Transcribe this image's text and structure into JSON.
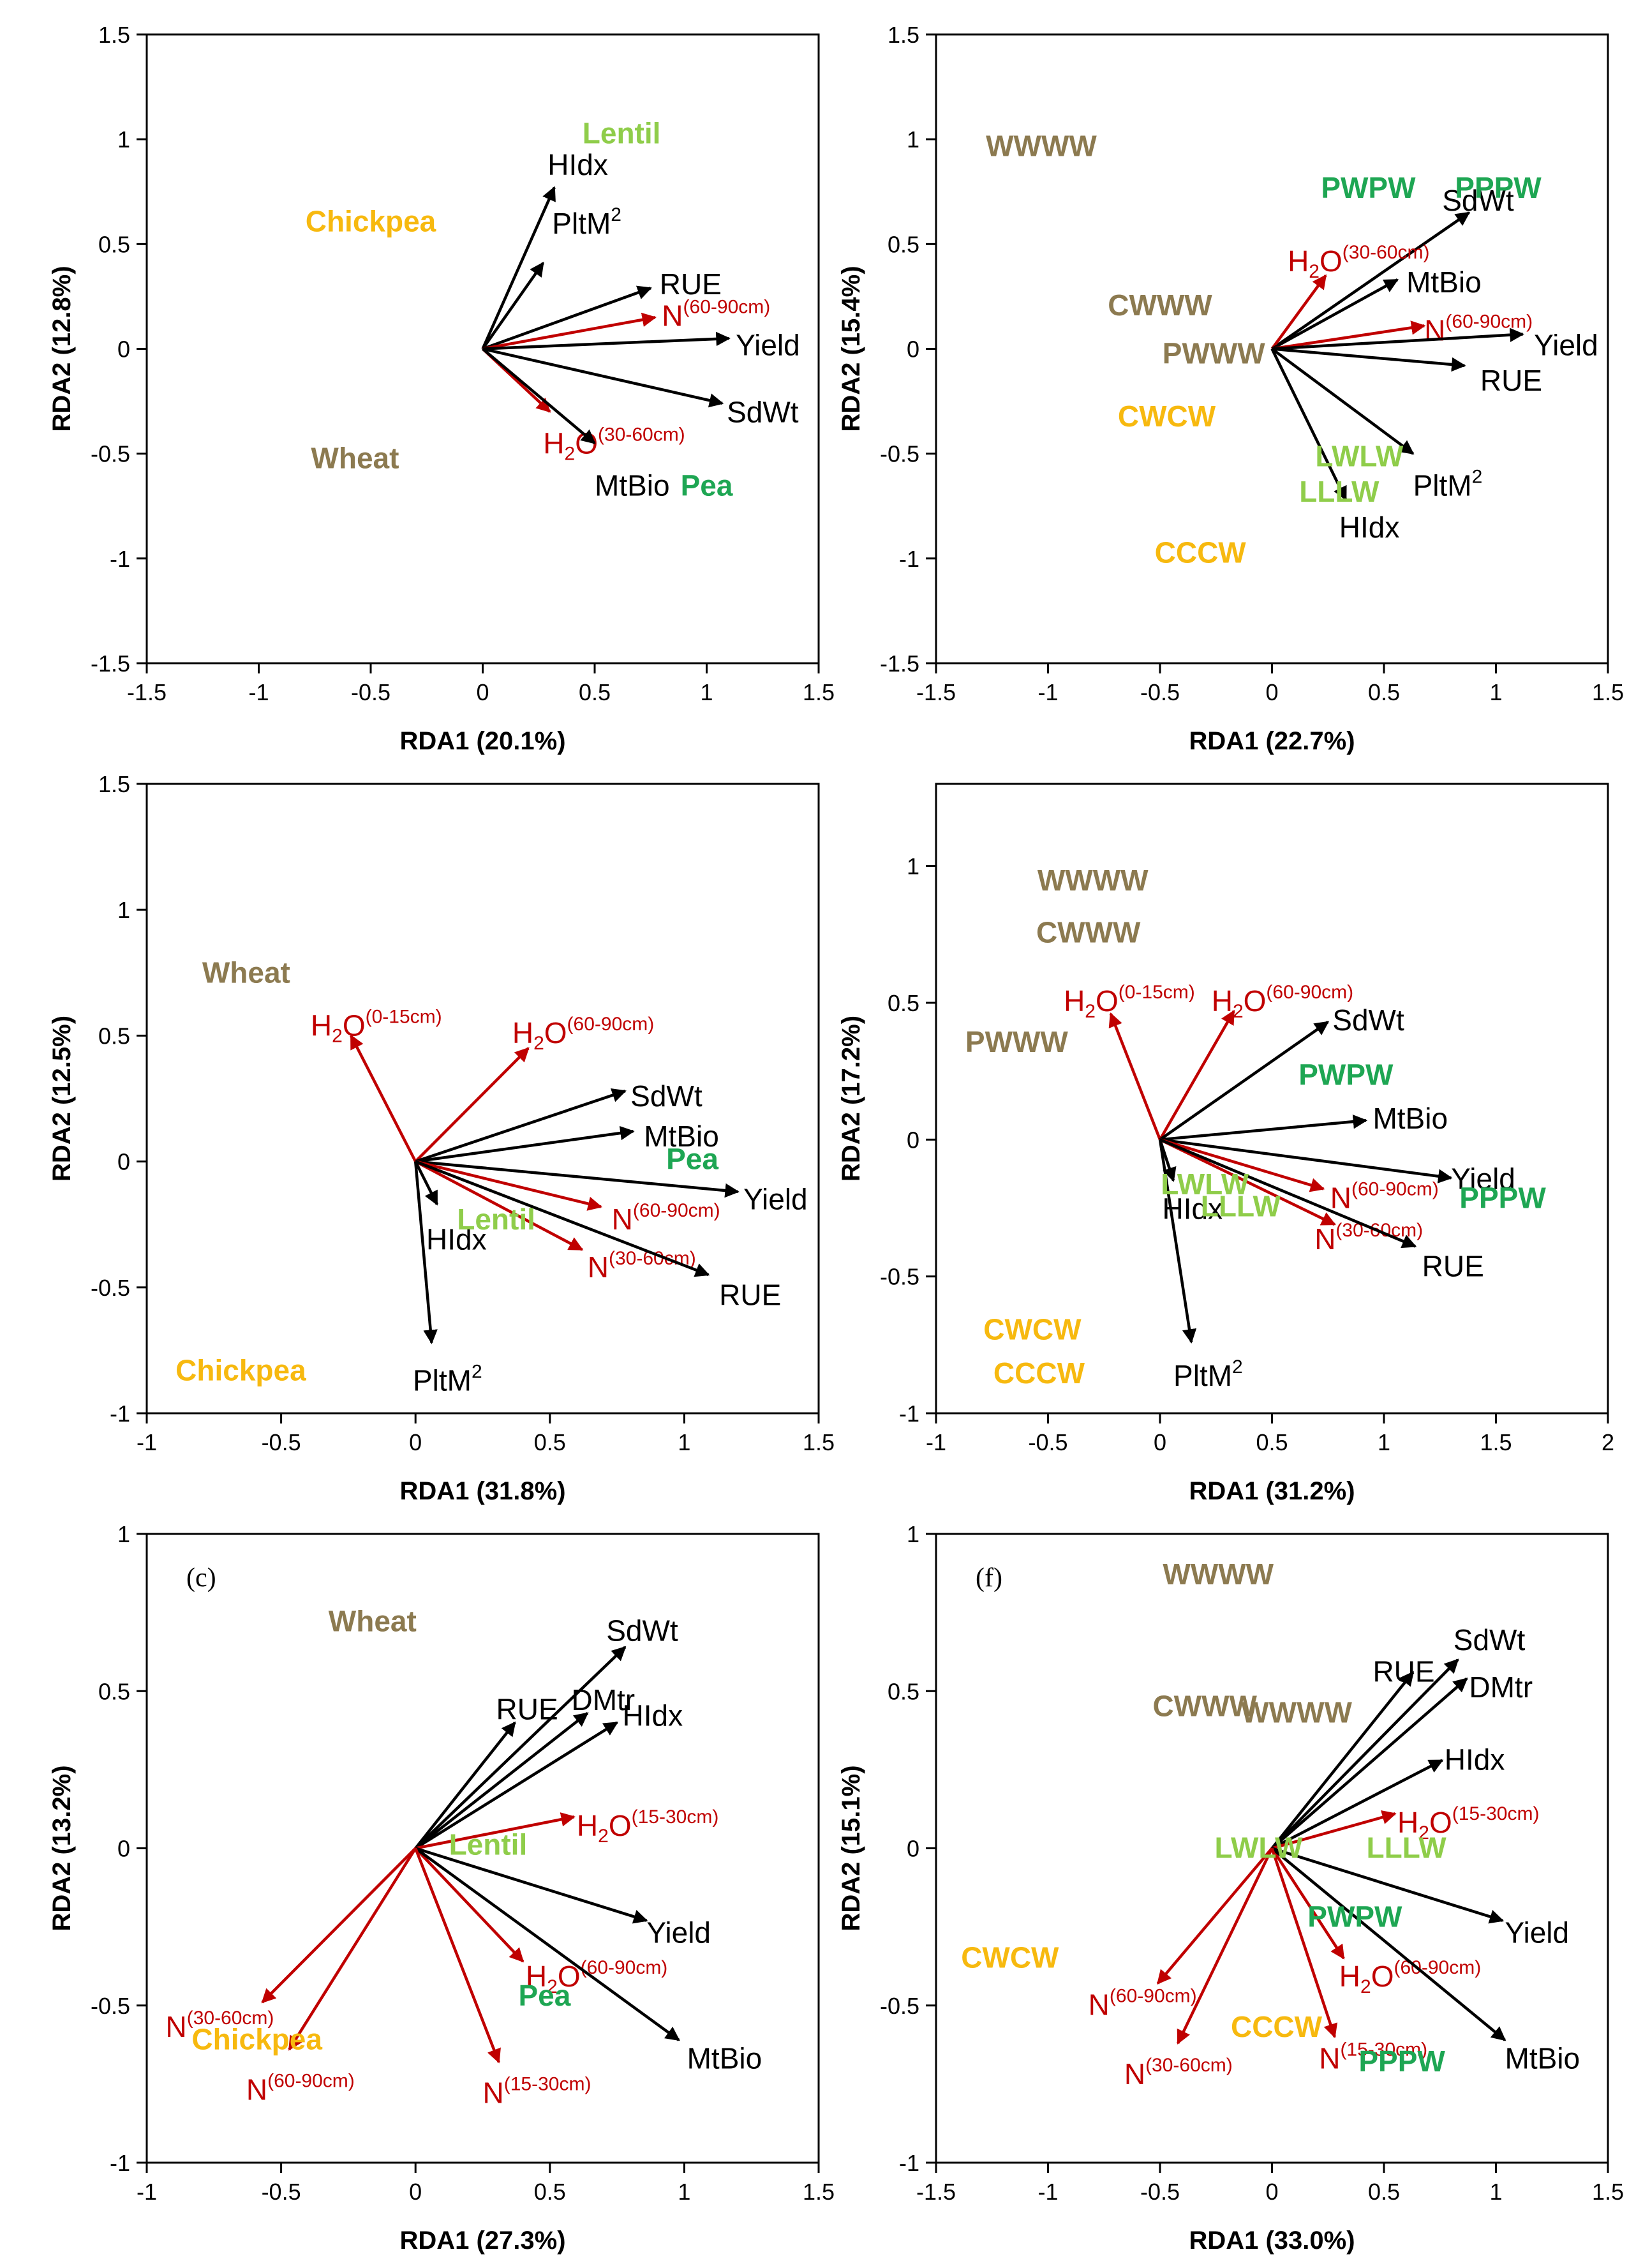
{
  "colors": {
    "response_arrow": "#000000",
    "soil_arrow": "#c00000",
    "wheat": "#8c7a50",
    "chickpea": "#f7b90f",
    "lentil": "#8fcd4a",
    "pea": "#1ea653"
  },
  "chart_data": [
    {
      "type": "scatter",
      "subtype": "rda-biplot",
      "xlabel": "RDA1 (20.1%)",
      "ylabel": "RDA2 (12.8%)",
      "xlim": [
        -1.5,
        1.5
      ],
      "ylim": [
        -1.5,
        1.5
      ],
      "xticks": [
        "-1.5",
        "-1",
        "-0.5",
        "0",
        "0.5",
        "1",
        "1.5"
      ],
      "yticks": [
        "-1.5",
        "-1",
        "-0.5",
        "0",
        "0.5",
        "1",
        "1.5"
      ],
      "panel_label": "",
      "arrows": [
        {
          "label": "HIdx",
          "sup": "",
          "x": 0.32,
          "y": 0.77,
          "color": "response_arrow",
          "lx": 0.29,
          "ly": 0.83
        },
        {
          "label": "PltM",
          "sup": "2",
          "x": 0.27,
          "y": 0.41,
          "color": "response_arrow",
          "lx": 0.31,
          "ly": 0.55
        },
        {
          "label": "RUE",
          "sup": "",
          "x": 0.75,
          "y": 0.29,
          "color": "response_arrow",
          "lx": 0.79,
          "ly": 0.26
        },
        {
          "label": "N",
          "sup": "(60-90cm)",
          "x": 0.77,
          "y": 0.15,
          "color": "soil_arrow",
          "lx": 0.8,
          "ly": 0.11
        },
        {
          "label": "Yield",
          "sup": "",
          "x": 1.1,
          "y": 0.05,
          "color": "response_arrow",
          "lx": 1.13,
          "ly": -0.03
        },
        {
          "label": "SdWt",
          "sup": "",
          "x": 1.07,
          "y": -0.26,
          "color": "response_arrow",
          "lx": 1.09,
          "ly": -0.35
        },
        {
          "label": "H",
          "sub": "2",
          "label2": "O",
          "sup": "(30-60cm)",
          "x": 0.3,
          "y": -0.3,
          "color": "soil_arrow",
          "lx": 0.27,
          "ly": -0.5
        },
        {
          "label": "MtBio",
          "sup": "",
          "x": 0.5,
          "y": -0.45,
          "color": "response_arrow",
          "lx": 0.5,
          "ly": -0.7
        }
      ],
      "treatments": [
        {
          "label": "Lentil",
          "x": 0.62,
          "y": 0.98,
          "color": "lentil"
        },
        {
          "label": "Chickpea",
          "x": -0.5,
          "y": 0.56,
          "color": "chickpea"
        },
        {
          "label": "Wheat",
          "x": -0.57,
          "y": -0.57,
          "color": "wheat"
        },
        {
          "label": "Pea",
          "x": 1.0,
          "y": -0.7,
          "color": "pea"
        }
      ]
    },
    {
      "type": "scatter",
      "subtype": "rda-biplot",
      "xlabel": "RDA1 (22.7%)",
      "ylabel": "RDA2 (15.4%)",
      "xlim": [
        -1.5,
        1.5
      ],
      "ylim": [
        -1.5,
        1.5
      ],
      "xticks": [
        "-1.5",
        "-1",
        "-0.5",
        "0",
        "0.5",
        "1",
        "1.5"
      ],
      "yticks": [
        "-1.5",
        "-1",
        "-0.5",
        "0",
        "0.5",
        "1",
        "1.5"
      ],
      "panel_label": "",
      "arrows": [
        {
          "label": "SdWt",
          "sup": "",
          "x": 0.88,
          "y": 0.65,
          "color": "response_arrow",
          "lx": 0.76,
          "ly": 0.66
        },
        {
          "label": "H",
          "sub": "2",
          "label2": "O",
          "sup": "(30-60cm)",
          "x": 0.24,
          "y": 0.35,
          "color": "soil_arrow",
          "lx": 0.07,
          "ly": 0.37
        },
        {
          "label": "MtBio",
          "sup": "",
          "x": 0.56,
          "y": 0.33,
          "color": "response_arrow",
          "lx": 0.6,
          "ly": 0.27
        },
        {
          "label": "N",
          "sup": "(60-90cm)",
          "x": 0.68,
          "y": 0.11,
          "color": "soil_arrow",
          "lx": 0.68,
          "ly": 0.04
        },
        {
          "label": "Yield",
          "sup": "",
          "x": 1.12,
          "y": 0.07,
          "color": "response_arrow",
          "lx": 1.17,
          "ly": -0.03
        },
        {
          "label": "RUE",
          "sup": "",
          "x": 0.86,
          "y": -0.08,
          "color": "response_arrow",
          "lx": 0.93,
          "ly": -0.2
        },
        {
          "label": "PltM",
          "sup": "2",
          "x": 0.63,
          "y": -0.5,
          "color": "response_arrow",
          "lx": 0.63,
          "ly": -0.7
        },
        {
          "label": "HIdx",
          "sup": "",
          "x": 0.33,
          "y": -0.72,
          "color": "response_arrow",
          "lx": 0.3,
          "ly": -0.9
        }
      ],
      "treatments": [
        {
          "label": "WWWW",
          "x": -1.03,
          "y": 0.92,
          "color": "wheat"
        },
        {
          "label": "PWPW",
          "x": 0.43,
          "y": 0.72,
          "color": "pea"
        },
        {
          "label": "PPPW",
          "x": 1.01,
          "y": 0.72,
          "color": "pea"
        },
        {
          "label": "CWWW",
          "x": -0.5,
          "y": 0.16,
          "color": "wheat"
        },
        {
          "label": "PWWW",
          "x": -0.26,
          "y": -0.07,
          "color": "wheat"
        },
        {
          "label": "CWCW",
          "x": -0.47,
          "y": -0.37,
          "color": "chickpea"
        },
        {
          "label": "LWLW",
          "x": 0.39,
          "y": -0.56,
          "color": "lentil"
        },
        {
          "label": "LLLW",
          "x": 0.3,
          "y": -0.73,
          "color": "lentil"
        },
        {
          "label": "CCCW",
          "x": -0.32,
          "y": -1.02,
          "color": "chickpea"
        }
      ]
    },
    {
      "type": "scatter",
      "subtype": "rda-biplot",
      "xlabel": "RDA1 (31.8%)",
      "ylabel": "RDA2 (12.5%)",
      "xlim": [
        -1,
        1.5
      ],
      "ylim": [
        -1,
        1.5
      ],
      "xticks": [
        "-1",
        "-0.5",
        "0",
        "0.5",
        "1",
        "1.5"
      ],
      "yticks": [
        "-1",
        "-0.5",
        "0",
        "0.5",
        "1",
        "1.5"
      ],
      "panel_label": "",
      "arrows": [
        {
          "label": "H",
          "sub": "2",
          "label2": "O",
          "sup": "(0-15cm)",
          "x": -0.24,
          "y": 0.5,
          "color": "soil_arrow",
          "lx": -0.39,
          "ly": 0.5
        },
        {
          "label": "H",
          "sub": "2",
          "label2": "O",
          "sup": "(60-90cm)",
          "x": 0.42,
          "y": 0.45,
          "color": "soil_arrow",
          "lx": 0.36,
          "ly": 0.47
        },
        {
          "label": "SdWt",
          "sup": "",
          "x": 0.78,
          "y": 0.28,
          "color": "response_arrow",
          "lx": 0.8,
          "ly": 0.22
        },
        {
          "label": "MtBio",
          "sup": "",
          "x": 0.81,
          "y": 0.12,
          "color": "response_arrow",
          "lx": 0.85,
          "ly": 0.06
        },
        {
          "label": "Yield",
          "sup": "",
          "x": 1.2,
          "y": -0.12,
          "color": "response_arrow",
          "lx": 1.22,
          "ly": -0.19
        },
        {
          "label": "N",
          "sup": "(60-90cm)",
          "x": 0.69,
          "y": -0.18,
          "color": "soil_arrow",
          "lx": 0.73,
          "ly": -0.27
        },
        {
          "label": "N",
          "sup": "(30-60cm)",
          "x": 0.62,
          "y": -0.35,
          "color": "soil_arrow",
          "lx": 0.64,
          "ly": -0.46
        },
        {
          "label": "RUE",
          "sup": "",
          "x": 1.09,
          "y": -0.45,
          "color": "response_arrow",
          "lx": 1.13,
          "ly": -0.57
        },
        {
          "label": "HIdx",
          "sup": "",
          "x": 0.08,
          "y": -0.17,
          "color": "response_arrow",
          "lx": 0.04,
          "ly": -0.35
        },
        {
          "label": "PltM",
          "sup": "2",
          "x": 0.06,
          "y": -0.72,
          "color": "response_arrow",
          "lx": -0.01,
          "ly": -0.91
        }
      ],
      "treatments": [
        {
          "label": "Wheat",
          "x": -0.63,
          "y": 0.71,
          "color": "wheat"
        },
        {
          "label": "Pea",
          "x": 1.03,
          "y": -0.03,
          "color": "pea"
        },
        {
          "label": "Lentil",
          "x": 0.3,
          "y": -0.27,
          "color": "lentil"
        },
        {
          "label": "Chickpea",
          "x": -0.65,
          "y": -0.87,
          "color": "chickpea"
        }
      ]
    },
    {
      "type": "scatter",
      "subtype": "rda-biplot",
      "xlabel": "RDA1 (31.2%)",
      "ylabel": "RDA2 (17.2%)",
      "xlim": [
        -1,
        2
      ],
      "ylim": [
        -1,
        1.3
      ],
      "xticks": [
        "-1",
        "-0.5",
        "0",
        "0.5",
        "1",
        "1.5",
        "2"
      ],
      "yticks": [
        "-1",
        "-0.5",
        "0",
        "0.5",
        "1"
      ],
      "panel_label": "",
      "arrows": [
        {
          "label": "H",
          "sub": "2",
          "label2": "O",
          "sup": "(0-15cm)",
          "x": -0.22,
          "y": 0.46,
          "color": "soil_arrow",
          "lx": -0.43,
          "ly": 0.47
        },
        {
          "label": "H",
          "sub": "2",
          "label2": "O",
          "sup": "(60-90cm)",
          "x": 0.33,
          "y": 0.47,
          "color": "soil_arrow",
          "lx": 0.23,
          "ly": 0.47
        },
        {
          "label": "SdWt",
          "sup": "",
          "x": 0.75,
          "y": 0.43,
          "color": "response_arrow",
          "lx": 0.77,
          "ly": 0.4
        },
        {
          "label": "MtBio",
          "sup": "",
          "x": 0.92,
          "y": 0.07,
          "color": "response_arrow",
          "lx": 0.95,
          "ly": 0.04
        },
        {
          "label": "Yield",
          "sup": "",
          "x": 1.3,
          "y": -0.14,
          "color": "response_arrow",
          "lx": 1.3,
          "ly": -0.18
        },
        {
          "label": "N",
          "sup": "(60-90cm)",
          "x": 0.73,
          "y": -0.18,
          "color": "soil_arrow",
          "lx": 0.76,
          "ly": -0.25
        },
        {
          "label": "N",
          "sup": "(30-60cm)",
          "x": 0.78,
          "y": -0.31,
          "color": "soil_arrow",
          "lx": 0.69,
          "ly": -0.4
        },
        {
          "label": "RUE",
          "sup": "",
          "x": 1.14,
          "y": -0.39,
          "color": "response_arrow",
          "lx": 1.17,
          "ly": -0.5
        },
        {
          "label": "HIdx",
          "sup": "",
          "x": 0.06,
          "y": -0.15,
          "color": "response_arrow",
          "lx": 0.01,
          "ly": -0.29
        },
        {
          "label": "PltM",
          "sup": "2",
          "x": 0.14,
          "y": -0.74,
          "color": "response_arrow",
          "lx": 0.06,
          "ly": -0.9
        }
      ],
      "treatments": [
        {
          "label": "WWWW",
          "x": -0.3,
          "y": 0.91,
          "color": "wheat"
        },
        {
          "label": "CWWW",
          "x": -0.32,
          "y": 0.72,
          "color": "wheat"
        },
        {
          "label": "PWWW",
          "x": -0.64,
          "y": 0.32,
          "color": "wheat"
        },
        {
          "label": "PWPW",
          "x": 0.83,
          "y": 0.2,
          "color": "pea"
        },
        {
          "label": "LWLW",
          "x": 0.2,
          "y": -0.2,
          "color": "lentil"
        },
        {
          "label": "LLLW",
          "x": 0.36,
          "y": -0.28,
          "color": "lentil"
        },
        {
          "label": "PPPW",
          "x": 1.53,
          "y": -0.25,
          "color": "pea"
        },
        {
          "label": "CWCW",
          "x": -0.57,
          "y": -0.73,
          "color": "chickpea"
        },
        {
          "label": "CCCW",
          "x": -0.54,
          "y": -0.89,
          "color": "chickpea"
        }
      ]
    },
    {
      "type": "scatter",
      "subtype": "rda-biplot",
      "xlabel": "RDA1 (27.3%)",
      "ylabel": "RDA2 (13.2%)",
      "xlim": [
        -1,
        1.5
      ],
      "ylim": [
        -1,
        1
      ],
      "xticks": [
        "-1",
        "-0.5",
        "0",
        "0.5",
        "1",
        "1.5"
      ],
      "yticks": [
        "-1",
        "-0.5",
        "0",
        "0.5",
        "1"
      ],
      "panel_label": "(c)",
      "arrows": [
        {
          "label": "SdWt",
          "sup": "",
          "x": 0.78,
          "y": 0.64,
          "color": "response_arrow",
          "lx": 0.71,
          "ly": 0.66
        },
        {
          "label": "RUE",
          "sup": "",
          "x": 0.37,
          "y": 0.4,
          "color": "response_arrow",
          "lx": 0.3,
          "ly": 0.41
        },
        {
          "label": "DMtr",
          "sup": "",
          "x": 0.64,
          "y": 0.43,
          "color": "response_arrow",
          "lx": 0.58,
          "ly": 0.44
        },
        {
          "label": "HIdx",
          "sup": "",
          "x": 0.75,
          "y": 0.4,
          "color": "response_arrow",
          "lx": 0.77,
          "ly": 0.39
        },
        {
          "label": "H",
          "sub": "2",
          "label2": "O",
          "sup": "(15-30cm)",
          "x": 0.59,
          "y": 0.1,
          "color": "soil_arrow",
          "lx": 0.6,
          "ly": 0.04
        },
        {
          "label": "Yield",
          "sup": "",
          "x": 0.86,
          "y": -0.23,
          "color": "response_arrow",
          "lx": 0.86,
          "ly": -0.3
        },
        {
          "label": "H",
          "sub": "2",
          "label2": "O",
          "sup": "(60-90cm)",
          "x": 0.4,
          "y": -0.36,
          "color": "soil_arrow",
          "lx": 0.41,
          "ly": -0.44
        },
        {
          "label": "MtBio",
          "sup": "",
          "x": 0.98,
          "y": -0.61,
          "color": "response_arrow",
          "lx": 1.01,
          "ly": -0.7
        },
        {
          "label": "N",
          "sup": "(15-30cm)",
          "x": 0.31,
          "y": -0.68,
          "color": "soil_arrow",
          "lx": 0.25,
          "ly": -0.81
        },
        {
          "label": "N",
          "sup": "(30-60cm)",
          "x": -0.57,
          "y": -0.49,
          "color": "soil_arrow",
          "lx": -0.93,
          "ly": -0.6
        },
        {
          "label": "N",
          "sup": "(60-90cm)",
          "x": -0.47,
          "y": -0.64,
          "color": "soil_arrow",
          "lx": -0.63,
          "ly": -0.8
        }
      ],
      "treatments": [
        {
          "label": "Wheat",
          "x": -0.16,
          "y": 0.69,
          "color": "wheat"
        },
        {
          "label": "Lentil",
          "x": 0.27,
          "y": -0.02,
          "color": "lentil"
        },
        {
          "label": "Pea",
          "x": 0.48,
          "y": -0.5,
          "color": "pea"
        },
        {
          "label": "Chickpea",
          "x": -0.59,
          "y": -0.64,
          "color": "chickpea"
        }
      ]
    },
    {
      "type": "scatter",
      "subtype": "rda-biplot",
      "xlabel": "RDA1 (33.0%)",
      "ylabel": "RDA2 (15.1%)",
      "xlim": [
        -1.5,
        1.5
      ],
      "ylim": [
        -1,
        1
      ],
      "xticks": [
        "-1.5",
        "-1",
        "-0.5",
        "0",
        "0.5",
        "1",
        "1.5"
      ],
      "yticks": [
        "-1",
        "-0.5",
        "0",
        "0.5",
        "1"
      ],
      "panel_label": "(f)",
      "arrows": [
        {
          "label": "SdWt",
          "sup": "",
          "x": 0.83,
          "y": 0.6,
          "color": "response_arrow",
          "lx": 0.81,
          "ly": 0.63
        },
        {
          "label": "RUE",
          "sup": "",
          "x": 0.63,
          "y": 0.56,
          "color": "response_arrow",
          "lx": 0.45,
          "ly": 0.53
        },
        {
          "label": "DMtr",
          "sup": "",
          "x": 0.87,
          "y": 0.54,
          "color": "response_arrow",
          "lx": 0.88,
          "ly": 0.48
        },
        {
          "label": "HIdx",
          "sup": "",
          "x": 0.76,
          "y": 0.28,
          "color": "response_arrow",
          "lx": 0.77,
          "ly": 0.25
        },
        {
          "label": "H",
          "sub": "2",
          "label2": "O",
          "sup": "(15-30cm)",
          "x": 0.55,
          "y": 0.11,
          "color": "soil_arrow",
          "lx": 0.56,
          "ly": 0.05
        },
        {
          "label": "Yield",
          "sup": "",
          "x": 1.03,
          "y": -0.23,
          "color": "response_arrow",
          "lx": 1.04,
          "ly": -0.3
        },
        {
          "label": "H",
          "sub": "2",
          "label2": "O",
          "sup": "(60-90cm)",
          "x": 0.32,
          "y": -0.35,
          "color": "soil_arrow",
          "lx": 0.3,
          "ly": -0.44
        },
        {
          "label": "MtBio",
          "sup": "",
          "x": 1.04,
          "y": -0.61,
          "color": "response_arrow",
          "lx": 1.04,
          "ly": -0.7
        },
        {
          "label": "N",
          "sup": "(15-30cm)",
          "x": 0.28,
          "y": -0.6,
          "color": "soil_arrow",
          "lx": 0.21,
          "ly": -0.7
        },
        {
          "label": "N",
          "sup": "(60-90cm)",
          "x": -0.51,
          "y": -0.43,
          "color": "soil_arrow",
          "lx": -0.82,
          "ly": -0.53
        },
        {
          "label": "N",
          "sup": "(30-60cm)",
          "x": -0.42,
          "y": -0.62,
          "color": "soil_arrow",
          "lx": -0.66,
          "ly": -0.75
        }
      ],
      "treatments": [
        {
          "label": "WWWW",
          "x": -0.24,
          "y": 0.84,
          "color": "wheat"
        },
        {
          "label": "CWWW",
          "x": -0.3,
          "y": 0.42,
          "color": "wheat"
        },
        {
          "label": "WWWW",
          "x": 0.11,
          "y": 0.4,
          "color": "wheat"
        },
        {
          "label": "LWLW",
          "x": -0.06,
          "y": -0.03,
          "color": "lentil"
        },
        {
          "label": "LLLW",
          "x": 0.6,
          "y": -0.03,
          "color": "lentil"
        },
        {
          "label": "CWCW",
          "x": -1.17,
          "y": -0.38,
          "color": "chickpea"
        },
        {
          "label": "PWPW",
          "x": 0.37,
          "y": -0.25,
          "color": "pea"
        },
        {
          "label": "CCCW",
          "x": 0.02,
          "y": -0.6,
          "color": "chickpea"
        },
        {
          "label": "PPPW",
          "x": 0.58,
          "y": -0.71,
          "color": "pea"
        }
      ]
    }
  ]
}
